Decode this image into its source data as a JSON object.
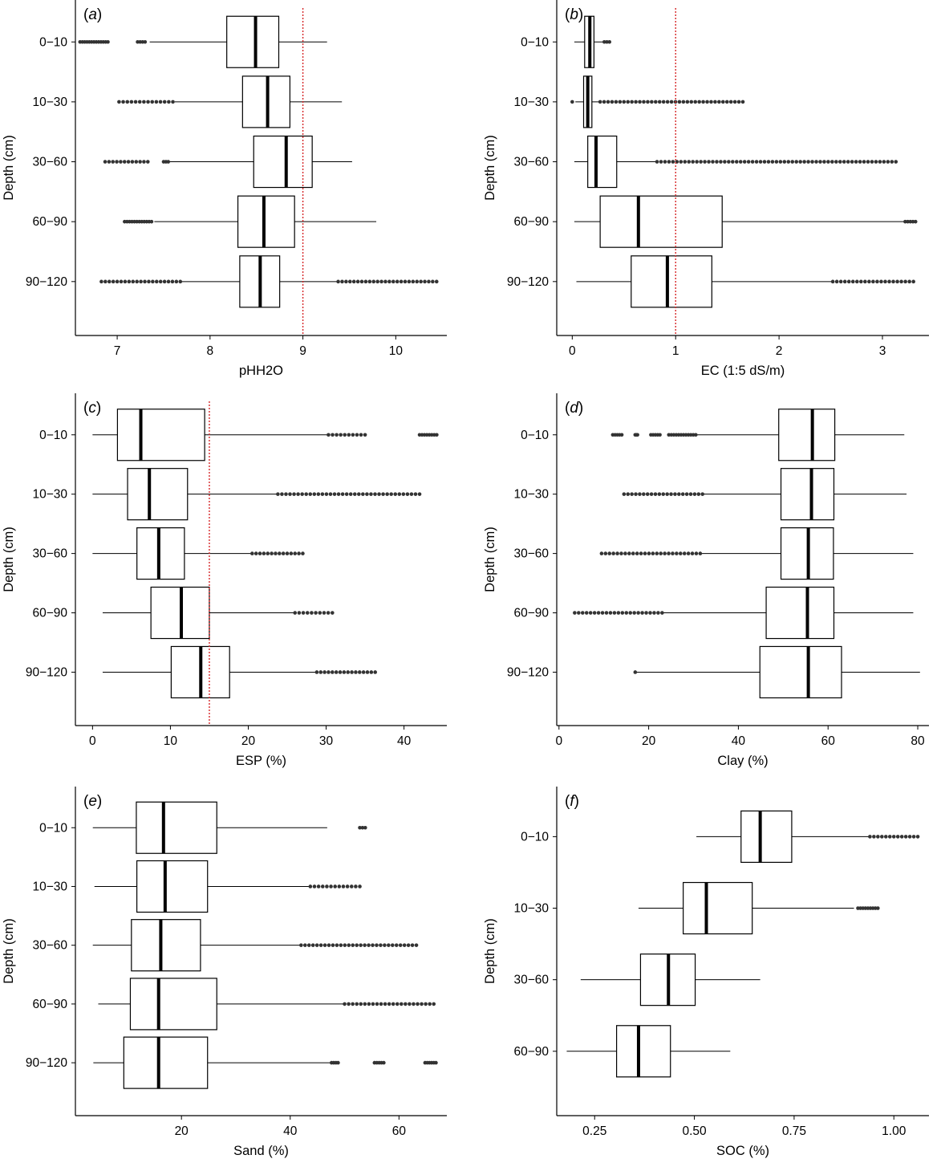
{
  "chart_data": [
    {
      "type": "boxplot",
      "panel_label": "a",
      "xlabel": "pHH2O",
      "ylabel": "Depth (cm)",
      "categories": [
        "0−10",
        "10−30",
        "30−60",
        "60−90",
        "90−120"
      ],
      "xlim": [
        6.55,
        10.55
      ],
      "xticks": [
        7,
        8,
        9,
        10
      ],
      "xtick_labels": [
        "7",
        "8",
        "9",
        "10"
      ],
      "reference_line": 9.0,
      "boxes": [
        {
          "min": 7.35,
          "q1": 8.18,
          "median": 8.49,
          "q3": 8.74,
          "max": 9.26,
          "outlier_ranges": [
            [
              6.6,
              6.9
            ],
            [
              7.22,
              7.3
            ]
          ]
        },
        {
          "min": 7.62,
          "q1": 8.35,
          "median": 8.62,
          "q3": 8.86,
          "max": 9.42,
          "outlier_ranges": [
            [
              7.02,
              7.6
            ]
          ]
        },
        {
          "min": 7.55,
          "q1": 8.47,
          "median": 8.82,
          "q3": 9.1,
          "max": 9.53,
          "outlier_ranges": [
            [
              6.87,
              7.33
            ],
            [
              7.5,
              7.55
            ]
          ]
        },
        {
          "min": 7.4,
          "q1": 8.3,
          "median": 8.58,
          "q3": 8.91,
          "max": 9.79,
          "outlier_ranges": [
            [
              7.08,
              7.37
            ]
          ]
        },
        {
          "min": 7.67,
          "q1": 8.32,
          "median": 8.54,
          "q3": 8.75,
          "max": 9.37,
          "outlier_ranges": [
            [
              6.83,
              7.68
            ],
            [
              9.38,
              10.44
            ]
          ]
        }
      ]
    },
    {
      "type": "boxplot",
      "panel_label": "b",
      "xlabel": "EC (1:5 dS/m)",
      "ylabel": "Depth (cm)",
      "categories": [
        "0−10",
        "10−30",
        "30−60",
        "60−90",
        "90−120"
      ],
      "xlim": [
        -0.15,
        3.45
      ],
      "xticks": [
        0,
        1,
        2,
        3
      ],
      "xtick_labels": [
        "0",
        "1",
        "2",
        "3"
      ],
      "reference_line": 1.0,
      "boxes": [
        {
          "min": 0.02,
          "q1": 0.12,
          "median": 0.17,
          "q3": 0.21,
          "max": 0.3,
          "outlier_ranges": [
            [
              0.31,
              0.36
            ]
          ]
        },
        {
          "min": 0.03,
          "q1": 0.11,
          "median": 0.15,
          "q3": 0.19,
          "max": 0.26,
          "outlier_ranges": [
            [
              0.0,
              0.0
            ],
            [
              0.27,
              1.65
            ]
          ]
        },
        {
          "min": 0.02,
          "q1": 0.15,
          "median": 0.23,
          "q3": 0.43,
          "max": 0.82,
          "outlier_ranges": [
            [
              0.82,
              3.13
            ]
          ]
        },
        {
          "min": 0.02,
          "q1": 0.27,
          "median": 0.64,
          "q3": 1.45,
          "max": 3.22,
          "outlier_ranges": [
            [
              3.22,
              3.32
            ]
          ]
        },
        {
          "min": 0.04,
          "q1": 0.57,
          "median": 0.92,
          "q3": 1.35,
          "max": 2.52,
          "outlier_ranges": [
            [
              2.52,
              3.3
            ]
          ]
        }
      ]
    },
    {
      "type": "boxplot",
      "panel_label": "c",
      "xlabel": "ESP (%)",
      "ylabel": "Depth (cm)",
      "categories": [
        "0−10",
        "10−30",
        "30−60",
        "60−90",
        "90−120"
      ],
      "xlim": [
        -2.2,
        45.5
      ],
      "xticks": [
        0,
        10,
        20,
        30,
        40
      ],
      "xtick_labels": [
        "0",
        "10",
        "20",
        "30",
        "40"
      ],
      "reference_line": 15,
      "boxes": [
        {
          "min": 0.0,
          "q1": 3.2,
          "median": 6.2,
          "q3": 14.4,
          "max": 30.3,
          "outlier_ranges": [
            [
              30.3,
              35.0
            ],
            [
              42.0,
              44.2
            ]
          ]
        },
        {
          "min": 0.0,
          "q1": 4.5,
          "median": 7.3,
          "q3": 12.2,
          "max": 23.8,
          "outlier_ranges": [
            [
              23.8,
              42.0
            ]
          ]
        },
        {
          "min": 0.0,
          "q1": 5.7,
          "median": 8.5,
          "q3": 11.8,
          "max": 20.5,
          "outlier_ranges": [
            [
              20.5,
              27.0
            ]
          ]
        },
        {
          "min": 1.3,
          "q1": 7.5,
          "median": 11.4,
          "q3": 15.0,
          "max": 26.0,
          "outlier_ranges": [
            [
              26.0,
              30.8
            ]
          ]
        },
        {
          "min": 1.3,
          "q1": 10.1,
          "median": 13.9,
          "q3": 17.6,
          "max": 28.8,
          "outlier_ranges": [
            [
              28.8,
              36.3
            ]
          ]
        }
      ]
    },
    {
      "type": "boxplot",
      "panel_label": "d",
      "xlabel": "Clay (%)",
      "ylabel": "Depth (cm)",
      "categories": [
        "0−10",
        "10−30",
        "30−60",
        "60−90",
        "90−120"
      ],
      "xlim": [
        -0.5,
        82.5
      ],
      "xticks": [
        0,
        20,
        40,
        60,
        80
      ],
      "xtick_labels": [
        "0",
        "20",
        "40",
        "60",
        "80"
      ],
      "reference_line": null,
      "boxes": [
        {
          "min": 30.5,
          "q1": 49.0,
          "median": 56.5,
          "q3": 61.5,
          "max": 77.0,
          "outlier_ranges": [
            [
              12.0,
              14.0
            ],
            [
              17.0,
              17.5
            ],
            [
              20.5,
              22.5
            ],
            [
              24.5,
              30.5
            ]
          ]
        },
        {
          "min": 32.0,
          "q1": 49.5,
          "median": 56.3,
          "q3": 61.3,
          "max": 77.5,
          "outlier_ranges": [
            [
              14.5,
              32.0
            ]
          ]
        },
        {
          "min": 31.5,
          "q1": 49.5,
          "median": 55.6,
          "q3": 61.2,
          "max": 79.0,
          "outlier_ranges": [
            [
              9.5,
              31.5
            ]
          ]
        },
        {
          "min": 23.0,
          "q1": 46.2,
          "median": 55.4,
          "q3": 61.3,
          "max": 79.0,
          "outlier_ranges": [
            [
              3.5,
              23.0
            ]
          ]
        },
        {
          "min": 17.2,
          "q1": 44.8,
          "median": 55.6,
          "q3": 63.0,
          "max": 80.5,
          "outlier_ranges": [
            [
              17.0,
              17.2
            ]
          ]
        }
      ]
    },
    {
      "type": "boxplot",
      "panel_label": "e",
      "xlabel": "Sand (%)",
      "ylabel": "Depth (cm)",
      "categories": [
        "0−10",
        "10−30",
        "30−60",
        "60−90",
        "90−120"
      ],
      "xlim": [
        0.5,
        68.8
      ],
      "xticks": [
        20,
        40,
        60
      ],
      "xtick_labels": [
        "20",
        "40",
        "60"
      ],
      "reference_line": null,
      "boxes": [
        {
          "min": 3.7,
          "q1": 11.7,
          "median": 16.7,
          "q3": 26.5,
          "max": 46.8,
          "outlier_ranges": [
            [
              52.8,
              53.8
            ]
          ]
        },
        {
          "min": 4.0,
          "q1": 11.8,
          "median": 17.0,
          "q3": 24.8,
          "max": 43.7,
          "outlier_ranges": [
            [
              43.7,
              52.8
            ]
          ]
        },
        {
          "min": 3.7,
          "q1": 10.8,
          "median": 16.2,
          "q3": 23.5,
          "max": 42.0,
          "outlier_ranges": [
            [
              42.0,
              63.2
            ]
          ]
        },
        {
          "min": 4.7,
          "q1": 10.6,
          "median": 15.8,
          "q3": 26.5,
          "max": 50.0,
          "outlier_ranges": [
            [
              50.0,
              66.4
            ]
          ]
        },
        {
          "min": 3.8,
          "q1": 9.4,
          "median": 15.8,
          "q3": 24.8,
          "max": 47.6,
          "outlier_ranges": [
            [
              47.6,
              48.8
            ],
            [
              55.5,
              57.2
            ],
            [
              64.8,
              66.8
            ]
          ]
        }
      ]
    },
    {
      "type": "boxplot",
      "panel_label": "f",
      "xlabel": "SOC (%)",
      "ylabel": "Depth (cm)",
      "categories": [
        "0−10",
        "10−30",
        "30−60",
        "60−90"
      ],
      "xlim": [
        0.155,
        1.088
      ],
      "xticks": [
        0.25,
        0.5,
        0.75,
        1.0
      ],
      "xtick_labels": [
        "0.25",
        "0.50",
        "0.75",
        "1.00"
      ],
      "reference_line": null,
      "boxes": [
        {
          "min": 0.505,
          "q1": 0.617,
          "median": 0.665,
          "q3": 0.744,
          "max": 0.94,
          "outlier_ranges": [
            [
              0.94,
              1.06
            ]
          ]
        },
        {
          "min": 0.36,
          "q1": 0.472,
          "median": 0.53,
          "q3": 0.645,
          "max": 0.9,
          "outlier_ranges": [
            [
              0.91,
              0.96
            ]
          ]
        },
        {
          "min": 0.215,
          "q1": 0.365,
          "median": 0.435,
          "q3": 0.502,
          "max": 0.665,
          "outlier_ranges": []
        },
        {
          "min": 0.18,
          "q1": 0.305,
          "median": 0.36,
          "q3": 0.44,
          "max": 0.59,
          "outlier_ranges": []
        }
      ]
    }
  ]
}
